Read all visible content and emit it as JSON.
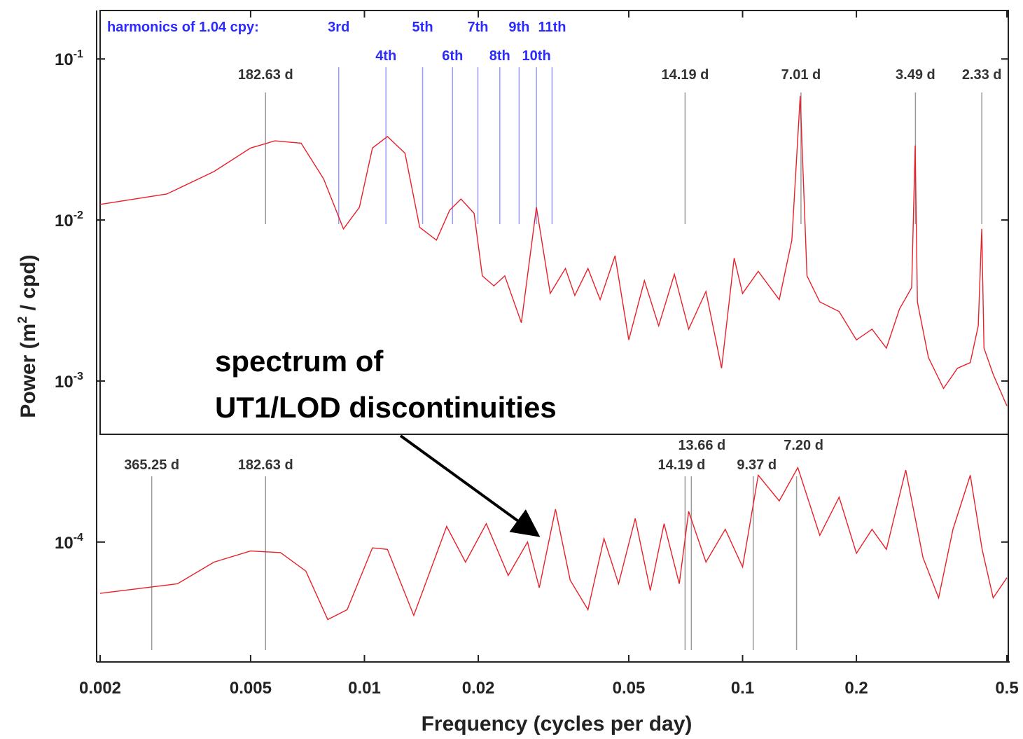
{
  "chart_data": {
    "type": "line",
    "xlabel": "Frequency (cycles per day)",
    "ylabel_main": "Power (m",
    "ylabel_sup": "2",
    "ylabel_tail": " / cpd)",
    "xscale": "log",
    "yscale": "log",
    "xlim": [
      0.002,
      0.5
    ],
    "ylim": [
      1.8e-05,
      0.2
    ],
    "x_ticks": [
      {
        "value": 0.002,
        "label": "0.002"
      },
      {
        "value": 0.005,
        "label": "0.005"
      },
      {
        "value": 0.01,
        "label": "0.01"
      },
      {
        "value": 0.02,
        "label": "0.02"
      },
      {
        "value": 0.05,
        "label": "0.05"
      },
      {
        "value": 0.1,
        "label": "0.1"
      },
      {
        "value": 0.2,
        "label": "0.2"
      },
      {
        "value": 0.5,
        "label": "0.5"
      }
    ],
    "y_ticks": [
      {
        "value": 0.1,
        "base": "10",
        "exp": "-1"
      },
      {
        "value": 0.01,
        "base": "10",
        "exp": "-2"
      },
      {
        "value": 0.001,
        "base": "10",
        "exp": "-3"
      },
      {
        "value": 0.0001,
        "base": "10",
        "exp": "-4"
      }
    ],
    "harmonics_header": "harmonics of 1.04 cpy:",
    "harmonics": [
      {
        "label": "3rd",
        "freq": 0.00855
      },
      {
        "label": "4th",
        "freq": 0.0114
      },
      {
        "label": "5th",
        "freq": 0.01425
      },
      {
        "label": "6th",
        "freq": 0.0171
      },
      {
        "label": "7th",
        "freq": 0.01995
      },
      {
        "label": "8th",
        "freq": 0.0228
      },
      {
        "label": "9th",
        "freq": 0.02565
      },
      {
        "label": "10th",
        "freq": 0.0285
      },
      {
        "label": "11th",
        "freq": 0.03135
      }
    ],
    "top_period_marks": [
      {
        "label": "182.63 d",
        "freq": 0.005476
      },
      {
        "label": "14.19 d",
        "freq": 0.07047
      },
      {
        "label": "7.01 d",
        "freq": 0.1427
      },
      {
        "label": "3.49 d",
        "freq": 0.2865
      },
      {
        "label": "2.33 d",
        "freq": 0.4292
      }
    ],
    "bottom_period_marks": [
      {
        "label": "365.25 d",
        "freq": 0.002738
      },
      {
        "label": "182.63 d",
        "freq": 0.005476
      },
      {
        "label": "13.66 d",
        "freq": 0.0732
      },
      {
        "label": "14.19 d",
        "freq": 0.07047
      },
      {
        "label": "9.37 d",
        "freq": 0.1067
      },
      {
        "label": "7.20 d",
        "freq": 0.1389
      }
    ],
    "series": [
      {
        "role": "top-spectrum",
        "points": [
          [
            0.002,
            0.0125
          ],
          [
            0.003,
            0.0145
          ],
          [
            0.004,
            0.02
          ],
          [
            0.005,
            0.028
          ],
          [
            0.0058,
            0.031
          ],
          [
            0.0068,
            0.03
          ],
          [
            0.0078,
            0.018
          ],
          [
            0.0088,
            0.0088
          ],
          [
            0.0097,
            0.012
          ],
          [
            0.0105,
            0.028
          ],
          [
            0.0115,
            0.033
          ],
          [
            0.0128,
            0.026
          ],
          [
            0.014,
            0.009
          ],
          [
            0.0155,
            0.0075
          ],
          [
            0.0168,
            0.0115
          ],
          [
            0.018,
            0.0135
          ],
          [
            0.0195,
            0.011
          ],
          [
            0.0205,
            0.0045
          ],
          [
            0.022,
            0.0039
          ],
          [
            0.0235,
            0.0045
          ],
          [
            0.026,
            0.0023
          ],
          [
            0.0285,
            0.012
          ],
          [
            0.031,
            0.0035
          ],
          [
            0.034,
            0.005
          ],
          [
            0.036,
            0.0034
          ],
          [
            0.039,
            0.005
          ],
          [
            0.042,
            0.0032
          ],
          [
            0.046,
            0.006
          ],
          [
            0.05,
            0.0018
          ],
          [
            0.055,
            0.0042
          ],
          [
            0.06,
            0.0022
          ],
          [
            0.066,
            0.0046
          ],
          [
            0.072,
            0.0021
          ],
          [
            0.08,
            0.0036
          ],
          [
            0.088,
            0.0012
          ],
          [
            0.095,
            0.0058
          ],
          [
            0.1,
            0.0035
          ],
          [
            0.11,
            0.0048
          ],
          [
            0.125,
            0.0032
          ],
          [
            0.135,
            0.0075
          ],
          [
            0.142,
            0.059
          ],
          [
            0.148,
            0.0045
          ],
          [
            0.16,
            0.0031
          ],
          [
            0.18,
            0.0027
          ],
          [
            0.2,
            0.0018
          ],
          [
            0.22,
            0.0021
          ],
          [
            0.24,
            0.0016
          ],
          [
            0.26,
            0.0028
          ],
          [
            0.28,
            0.0038
          ],
          [
            0.286,
            0.029
          ],
          [
            0.29,
            0.0031
          ],
          [
            0.31,
            0.0014
          ],
          [
            0.34,
            0.0009
          ],
          [
            0.37,
            0.0012
          ],
          [
            0.4,
            0.0013
          ],
          [
            0.42,
            0.0022
          ],
          [
            0.429,
            0.0088
          ],
          [
            0.435,
            0.0016
          ],
          [
            0.46,
            0.0011
          ],
          [
            0.5,
            0.0007
          ]
        ]
      },
      {
        "role": "bottom-spectrum",
        "points": [
          [
            0.002,
            4.8e-05
          ],
          [
            0.0032,
            5.5e-05
          ],
          [
            0.004,
            7.5e-05
          ],
          [
            0.005,
            8.8e-05
          ],
          [
            0.006,
            8.6e-05
          ],
          [
            0.007,
            6.6e-05
          ],
          [
            0.008,
            3.3e-05
          ],
          [
            0.009,
            3.8e-05
          ],
          [
            0.0105,
            9.2e-05
          ],
          [
            0.0115,
            9e-05
          ],
          [
            0.0135,
            3.5e-05
          ],
          [
            0.0165,
            0.000125
          ],
          [
            0.0185,
            7.5e-05
          ],
          [
            0.021,
            0.00013
          ],
          [
            0.024,
            6.2e-05
          ],
          [
            0.027,
            0.0001
          ],
          [
            0.029,
            5.2e-05
          ],
          [
            0.032,
            0.00016
          ],
          [
            0.035,
            5.8e-05
          ],
          [
            0.039,
            3.8e-05
          ],
          [
            0.043,
            0.000105
          ],
          [
            0.047,
            5.5e-05
          ],
          [
            0.052,
            0.00014
          ],
          [
            0.057,
            5e-05
          ],
          [
            0.062,
            0.00013
          ],
          [
            0.068,
            5.5e-05
          ],
          [
            0.072,
            0.000155
          ],
          [
            0.08,
            7.5e-05
          ],
          [
            0.09,
            0.00012
          ],
          [
            0.1,
            7e-05
          ],
          [
            0.11,
            0.00026
          ],
          [
            0.125,
            0.00018
          ],
          [
            0.14,
            0.00029
          ],
          [
            0.16,
            0.00011
          ],
          [
            0.18,
            0.00019
          ],
          [
            0.2,
            8.5e-05
          ],
          [
            0.22,
            0.00012
          ],
          [
            0.24,
            9e-05
          ],
          [
            0.27,
            0.00028
          ],
          [
            0.3,
            8e-05
          ],
          [
            0.33,
            4.5e-05
          ],
          [
            0.36,
            0.00012
          ],
          [
            0.4,
            0.00026
          ],
          [
            0.43,
            9e-05
          ],
          [
            0.46,
            4.5e-05
          ],
          [
            0.5,
            6e-05
          ]
        ]
      }
    ],
    "callout_line1": "spectrum of",
    "callout_line2": "UT1/LOD discontinuities",
    "colors": {
      "spectrum": "#e8202a",
      "harmonic_line": "#9a9aff",
      "harmonic_text": "#2b2bff",
      "period_line": "#9a9a9a",
      "axis": "#222222"
    }
  }
}
